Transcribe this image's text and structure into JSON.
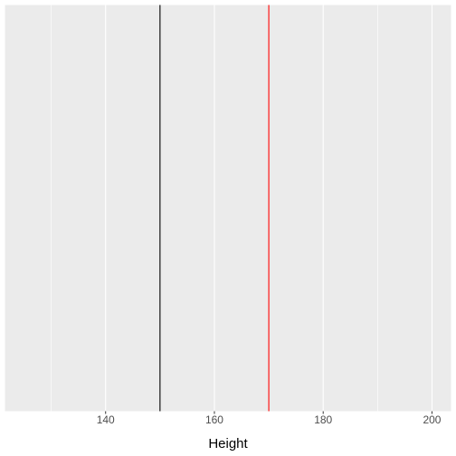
{
  "chart_data": {
    "type": "line",
    "title": "",
    "xlabel": "Height",
    "ylabel": "",
    "xlim": [
      121.5,
      203.5
    ],
    "x_ticks": [
      140,
      160,
      180,
      200
    ],
    "x_tick_labels": [
      "140",
      "160",
      "180",
      "200"
    ],
    "x_minor_grid": [
      130,
      150,
      170,
      190
    ],
    "grid": true,
    "panel_background": "#EBEBEB",
    "grid_color": "#FFFFFF",
    "vlines": [
      {
        "x": 150,
        "color": "#000000"
      },
      {
        "x": 170,
        "color": "#FF0000"
      }
    ]
  }
}
